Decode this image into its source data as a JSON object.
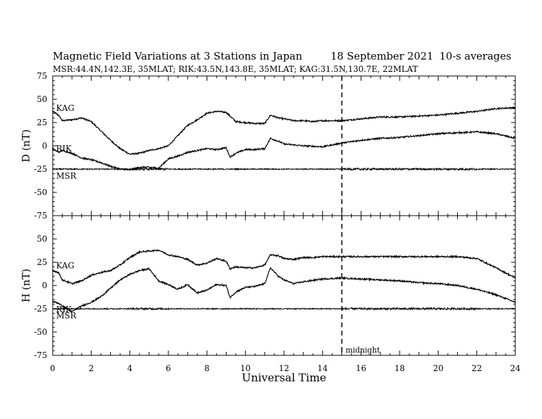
{
  "header": {
    "title": "Magnetic Field Variations at 3 Stations in Japan",
    "date": "18 September 2021",
    "averaging": "10-s averages",
    "stations_line": "MSR:44.4N,142.3E, 35MLAT;  RIK:43.5N,143.8E, 35MLAT;  KAG:31.5N,130.7E, 22MLAT"
  },
  "chart_data": [
    {
      "type": "line",
      "panel": "D",
      "ylabel": "D (nT)",
      "xlabel": "",
      "xlim": [
        0,
        24
      ],
      "ylim": [
        -75,
        75
      ],
      "yticks": [
        75,
        50,
        25,
        0,
        -25,
        -50,
        -75
      ],
      "grid": false,
      "series": [
        {
          "name": "KAG",
          "x": [
            0,
            0.3,
            0.5,
            1,
            1.5,
            2,
            2.5,
            3,
            3.5,
            4,
            4.5,
            5,
            5.5,
            6,
            6.5,
            7,
            7.5,
            8,
            8.5,
            9,
            9.5,
            10,
            10.5,
            11,
            11.3,
            11.7,
            12,
            12.5,
            13,
            13.5,
            14,
            15,
            16,
            17,
            18,
            19,
            20,
            21,
            22,
            23,
            24
          ],
          "y": [
            37,
            33,
            27,
            28,
            30,
            26,
            16,
            6,
            -3,
            -9,
            -8,
            -5,
            -3,
            0,
            11,
            22,
            28,
            35,
            37,
            36,
            26,
            25,
            24,
            24,
            33,
            30,
            29,
            27,
            27,
            26,
            27,
            27,
            29,
            31,
            31,
            32,
            33,
            35,
            37,
            40,
            41
          ]
        },
        {
          "name": "RIK",
          "x": [
            0,
            0.3,
            0.5,
            1,
            1.5,
            2,
            2.5,
            3,
            3.5,
            4,
            4.5,
            5,
            5.5,
            6,
            6.5,
            7,
            7.5,
            8,
            8.5,
            9,
            9.2,
            9.5,
            10,
            10.5,
            11,
            11.3,
            11.7,
            12,
            12.5,
            13,
            14,
            15,
            16,
            17,
            18,
            19,
            20,
            21,
            22,
            23,
            24
          ],
          "y": [
            -3,
            -7,
            -5,
            -8,
            -13,
            -15,
            -18,
            -22,
            -25,
            -26,
            -23,
            -23,
            -24,
            -14,
            -11,
            -7,
            -5,
            -3,
            -4,
            -2,
            -12,
            -8,
            -4,
            -4,
            -3,
            8,
            5,
            2,
            1,
            0,
            -1,
            3,
            6,
            8,
            9,
            11,
            13,
            14,
            15,
            13,
            8
          ]
        },
        {
          "name": "MSR",
          "x": [
            0,
            24
          ],
          "y": [
            -25,
            -25
          ]
        }
      ],
      "annotations": [
        "KAG",
        "RIK",
        "MSR"
      ]
    },
    {
      "type": "line",
      "panel": "H",
      "ylabel": "H (nT)",
      "xlabel": "Universal Time",
      "xlim": [
        0,
        24
      ],
      "ylim": [
        -75,
        75
      ],
      "yticks": [
        75,
        50,
        25,
        0,
        -25,
        -50,
        -75
      ],
      "xticks": [
        0,
        2,
        4,
        6,
        8,
        10,
        12,
        14,
        16,
        18,
        20,
        22,
        24
      ],
      "grid": false,
      "series": [
        {
          "name": "KAG",
          "x": [
            0,
            0.3,
            0.5,
            1,
            1.5,
            2,
            2.5,
            3,
            3.5,
            4,
            4.5,
            5,
            5.5,
            6,
            6.5,
            7,
            7.5,
            8,
            8.5,
            9,
            9.2,
            9.5,
            10,
            10.5,
            11,
            11.3,
            11.7,
            12,
            12.5,
            13,
            13.5,
            14,
            15,
            16,
            17,
            18,
            19,
            20,
            21,
            22,
            23,
            24
          ],
          "y": [
            16,
            14,
            6,
            2,
            5,
            11,
            14,
            16,
            22,
            30,
            36,
            37,
            38,
            33,
            31,
            28,
            22,
            24,
            29,
            26,
            18,
            20,
            19,
            19,
            22,
            33,
            32,
            29,
            28,
            30,
            30,
            31,
            31,
            31,
            31,
            31,
            31,
            31,
            31,
            29,
            19,
            8
          ]
        },
        {
          "name": "RIK",
          "x": [
            0,
            0.3,
            0.5,
            1,
            1.5,
            2,
            2.5,
            3,
            3.5,
            4,
            4.5,
            5,
            5.5,
            6,
            6.5,
            7,
            7.5,
            8,
            8.5,
            9,
            9.2,
            9.5,
            10,
            10.5,
            11,
            11.3,
            11.7,
            12,
            12.5,
            13,
            14,
            15,
            16,
            17,
            18,
            19,
            20,
            21,
            22,
            23,
            24
          ],
          "y": [
            -17,
            -19,
            -22,
            -28,
            -22,
            -18,
            -12,
            -3,
            6,
            12,
            16,
            18,
            5,
            1,
            -4,
            1,
            -8,
            -5,
            1,
            0,
            -13,
            -7,
            -2,
            -1,
            2,
            19,
            10,
            6,
            2,
            4,
            7,
            8,
            7,
            6,
            5,
            3,
            2,
            0,
            -4,
            -10,
            -18
          ]
        },
        {
          "name": "MSR",
          "x": [
            0,
            24
          ],
          "y": [
            -25,
            -25
          ]
        }
      ],
      "annotations": [
        "KAG",
        "RIK",
        "MSR",
        "midnight"
      ]
    }
  ]
}
